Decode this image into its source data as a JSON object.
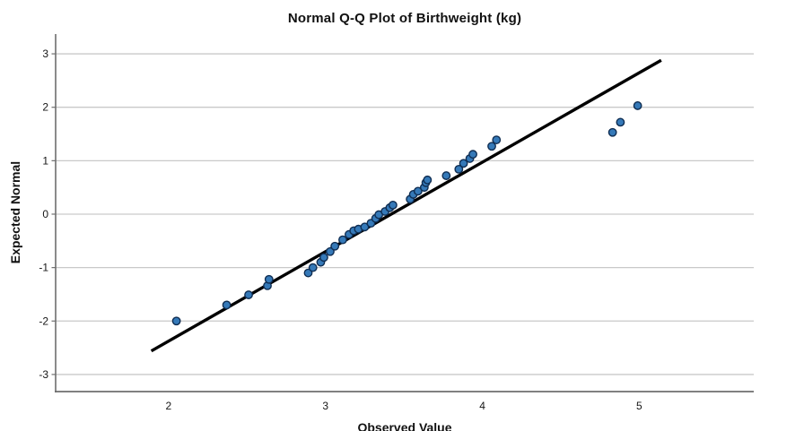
{
  "title": "Normal Q-Q Plot of Birthweight (kg)",
  "colors": {
    "marker_fill": "#3579b8",
    "marker_stroke": "#0f2d52",
    "trend_line": "#000000",
    "gridline": "#c9c9c9",
    "axis_spine": "#6e6e6e",
    "text": "#161616",
    "background": "#ffffff"
  },
  "chart_data": {
    "type": "scatter",
    "title": "Normal Q-Q Plot of Birthweight (kg)",
    "xlabel": "Observed Value",
    "ylabel": "Expected Normal",
    "xlim": [
      1.28,
      5.73
    ],
    "ylim": [
      -3.32,
      3.37
    ],
    "x_ticks": [
      2,
      3,
      4,
      5
    ],
    "y_ticks": [
      3,
      2,
      1,
      0,
      -1,
      -2,
      -3
    ],
    "grid": "horizontal-only",
    "legend": "none",
    "points": [
      [
        2.05,
        -2.0
      ],
      [
        2.37,
        -1.7
      ],
      [
        2.51,
        -1.51
      ],
      [
        2.63,
        -1.34
      ],
      [
        2.64,
        -1.22
      ],
      [
        2.89,
        -1.1
      ],
      [
        2.92,
        -1.0
      ],
      [
        2.97,
        -0.9
      ],
      [
        2.99,
        -0.81
      ],
      [
        3.03,
        -0.7
      ],
      [
        3.06,
        -0.6
      ],
      [
        3.11,
        -0.48
      ],
      [
        3.15,
        -0.38
      ],
      [
        3.18,
        -0.31
      ],
      [
        3.21,
        -0.28
      ],
      [
        3.25,
        -0.24
      ],
      [
        3.29,
        -0.17
      ],
      [
        3.32,
        -0.08
      ],
      [
        3.34,
        -0.01
      ],
      [
        3.38,
        0.05
      ],
      [
        3.41,
        0.12
      ],
      [
        3.43,
        0.17
      ],
      [
        3.54,
        0.28
      ],
      [
        3.56,
        0.37
      ],
      [
        3.59,
        0.43
      ],
      [
        3.63,
        0.5
      ],
      [
        3.64,
        0.59
      ],
      [
        3.65,
        0.64
      ],
      [
        3.77,
        0.72
      ],
      [
        3.85,
        0.84
      ],
      [
        3.88,
        0.95
      ],
      [
        3.92,
        1.04
      ],
      [
        3.94,
        1.12
      ],
      [
        4.06,
        1.27
      ],
      [
        4.09,
        1.39
      ],
      [
        4.83,
        1.53
      ],
      [
        4.88,
        1.72
      ],
      [
        4.99,
        2.03
      ]
    ],
    "reference_line": {
      "x1": 1.89,
      "y1": -2.56,
      "x2": 5.14,
      "y2": 2.88
    },
    "marker": {
      "shape": "circle",
      "radius": 4.2
    }
  }
}
